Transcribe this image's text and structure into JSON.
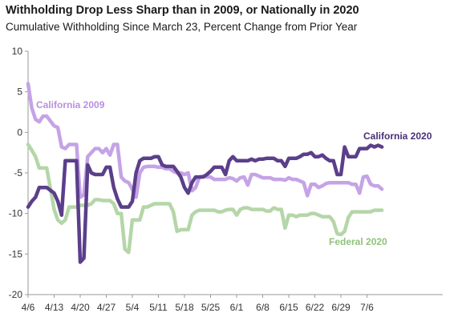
{
  "chart_data": {
    "type": "line",
    "title": "Withholding Drop Less Sharp than in 2009, or Nationally in 2020",
    "subtitle": "Cumulative Withholding Since March 23, Percent Change from Prior Year",
    "xlabel": "",
    "ylabel": "",
    "ylim": [
      -20,
      10
    ],
    "yticks": [
      10,
      5,
      0,
      -5,
      -10,
      -15,
      -20
    ],
    "grid": false,
    "legend": "inline",
    "xtick_labels": [
      "4/6",
      "4/13",
      "4/20",
      "4/27",
      "5/4",
      "5/11",
      "5/18",
      "5/25",
      "6/1",
      "6/8",
      "6/15",
      "6/22",
      "6/29",
      "7/6"
    ],
    "x_day_range": [
      0,
      95
    ],
    "series": [
      {
        "name": "California 2009",
        "color": "#c5a3e6",
        "label_color": "#b98fe0",
        "x": [
          0,
          1,
          2,
          3,
          4,
          5,
          7,
          8,
          9,
          10,
          11,
          12,
          13,
          14,
          15,
          16,
          17,
          18,
          19,
          20,
          21,
          22,
          23,
          24,
          25,
          26,
          27,
          28,
          29,
          30,
          31,
          32,
          33,
          34,
          35,
          36,
          37,
          38,
          39,
          40,
          41,
          42,
          43,
          44,
          45,
          46,
          47,
          48,
          49,
          50,
          51,
          52,
          53,
          54,
          55,
          56,
          57,
          58,
          59,
          60,
          61,
          62,
          63,
          64,
          65,
          66,
          67,
          68,
          69,
          70,
          71,
          72,
          73,
          74,
          75,
          76,
          77,
          78,
          79,
          80,
          81,
          82,
          83,
          84,
          85,
          86,
          87,
          88,
          89,
          90,
          91,
          92,
          93,
          94,
          95
        ],
        "y": [
          6,
          3,
          1.6,
          1.3,
          2,
          2,
          0.8,
          0.6,
          -1.8,
          -2,
          -1.5,
          -1.5,
          -1.5,
          -8,
          -7.7,
          -3,
          -2.5,
          -2,
          -2,
          -2.5,
          -2,
          -2.8,
          -1.5,
          -1.5,
          -5.5,
          -6,
          -6.2,
          -7,
          -8,
          -5,
          -4.3,
          -4.2,
          -4.2,
          -4.2,
          -4.3,
          -4.3,
          -4.5,
          -4.5,
          -4.8,
          -5,
          -5,
          -5.2,
          -5,
          -7.2,
          -6.8,
          -5.5,
          -5.4,
          -5.5,
          -5.5,
          -5.8,
          -5.8,
          -5.8,
          -5.8,
          -5.6,
          -5.7,
          -6,
          -5.6,
          -5.5,
          -6.5,
          -5.2,
          -5.2,
          -5.4,
          -5.6,
          -5.6,
          -5.6,
          -5.8,
          -5.8,
          -5.8,
          -5.9,
          -5.6,
          -5.8,
          -5.8,
          -6,
          -6.2,
          -7.8,
          -6.4,
          -6.4,
          -6.8,
          -6.6,
          -6.3,
          -6.2,
          -6.2,
          -6.2,
          -6.2,
          -6.2,
          -6.2,
          -6.4,
          -6.4,
          -7.5,
          -5.5,
          -5.4,
          -6.4,
          -6.6,
          -6.6,
          -7
        ]
      },
      {
        "name": "California 2020",
        "color": "#5b3f8a",
        "label_color": "#4a2f78",
        "x": [
          0,
          1,
          2,
          3,
          4,
          5,
          7,
          8,
          9,
          10,
          11,
          12,
          13,
          14,
          15,
          16,
          17,
          18,
          19,
          20,
          21,
          22,
          23,
          24,
          25,
          26,
          27,
          28,
          29,
          30,
          31,
          32,
          33,
          34,
          35,
          36,
          37,
          38,
          39,
          40,
          41,
          42,
          43,
          44,
          45,
          46,
          47,
          48,
          49,
          50,
          51,
          52,
          53,
          54,
          55,
          56,
          57,
          58,
          59,
          60,
          61,
          62,
          63,
          64,
          65,
          66,
          67,
          68,
          69,
          70,
          71,
          72,
          73,
          74,
          75,
          76,
          77,
          78,
          79,
          80,
          81,
          82,
          83,
          84,
          85,
          86,
          87,
          88,
          89,
          90,
          91,
          92,
          93,
          94,
          95
        ],
        "y": [
          -9.2,
          -8.5,
          -8,
          -6.8,
          -6.8,
          -6.8,
          -7.5,
          -8.5,
          -10.2,
          -3.5,
          -3.5,
          -3.5,
          -3.5,
          -16,
          -15.5,
          -4,
          -5,
          -5.2,
          -5.2,
          -5.2,
          -4.3,
          -4.3,
          -6.8,
          -8.2,
          -9.2,
          -9.2,
          -9.2,
          -8.5,
          -5,
          -3.5,
          -3.2,
          -3.2,
          -3.2,
          -3,
          -3,
          -4,
          -4.2,
          -4.2,
          -4.2,
          -4.8,
          -5.5,
          -6.8,
          -7.5,
          -6.2,
          -5.5,
          -5.5,
          -5.5,
          -5.2,
          -4.8,
          -4.3,
          -4.3,
          -4.3,
          -5.2,
          -3.5,
          -3,
          -3.5,
          -3.5,
          -3.5,
          -3.5,
          -3.3,
          -3.5,
          -3.3,
          -3.3,
          -3.2,
          -3.2,
          -3.2,
          -3.5,
          -3.5,
          -4.2,
          -3.2,
          -3.2,
          -3.2,
          -3,
          -2.7,
          -2.7,
          -2.5,
          -3,
          -3,
          -2.8,
          -3.2,
          -3.5,
          -3.5,
          -5.2,
          -5.2,
          -1.8,
          -3,
          -3,
          -3,
          -2,
          -2,
          -2,
          -1.6,
          -1.8,
          -1.6,
          -1.8
        ]
      },
      {
        "name": "Federal 2020",
        "color": "#b5d6a8",
        "label_color": "#8fc27c",
        "x": [
          0,
          1,
          2,
          3,
          4,
          5,
          7,
          8,
          9,
          10,
          11,
          12,
          13,
          14,
          15,
          16,
          17,
          18,
          19,
          20,
          21,
          22,
          23,
          24,
          25,
          26,
          27,
          28,
          29,
          30,
          31,
          32,
          33,
          34,
          35,
          36,
          37,
          38,
          39,
          40,
          41,
          42,
          43,
          44,
          45,
          46,
          47,
          48,
          49,
          50,
          51,
          52,
          53,
          54,
          55,
          56,
          57,
          58,
          59,
          60,
          61,
          62,
          63,
          64,
          65,
          66,
          67,
          68,
          69,
          70,
          71,
          72,
          73,
          74,
          75,
          76,
          77,
          78,
          79,
          80,
          81,
          82,
          83,
          84,
          85,
          86,
          87,
          88,
          89,
          90,
          91,
          92,
          93,
          94,
          95
        ],
        "y": [
          -1.5,
          -2.2,
          -3,
          -4.4,
          -4.4,
          -4.4,
          -9.5,
          -10.8,
          -11.2,
          -10.8,
          -9.2,
          -9.2,
          -9.2,
          -9,
          -9,
          -9,
          -8.8,
          -8.3,
          -8.3,
          -8.4,
          -8.4,
          -8.4,
          -8.8,
          -10,
          -10,
          -14.4,
          -14.8,
          -10.8,
          -10.8,
          -10.8,
          -9.2,
          -9.2,
          -9,
          -8.8,
          -8.8,
          -8.8,
          -8.8,
          -8.8,
          -9.8,
          -12.2,
          -12,
          -12,
          -12,
          -10.2,
          -9.8,
          -9.6,
          -9.6,
          -9.6,
          -9.6,
          -9.6,
          -9.8,
          -9.8,
          -9.6,
          -9.5,
          -9.5,
          -10.2,
          -9.5,
          -9.3,
          -9.3,
          -9.5,
          -9.5,
          -9.5,
          -9.5,
          -9.7,
          -9.7,
          -9.3,
          -9.5,
          -9.5,
          -11.8,
          -10.2,
          -10.2,
          -10.4,
          -10.2,
          -10.2,
          -10.2,
          -10,
          -10,
          -10.2,
          -10.4,
          -10.4,
          -10.4,
          -11,
          -12.5,
          -12.6,
          -12.2,
          -10.5,
          -9.8,
          -9.8,
          -9.8,
          -9.8,
          -9.8,
          -9.8,
          -9.6,
          -9.6,
          -9.6
        ]
      }
    ]
  }
}
